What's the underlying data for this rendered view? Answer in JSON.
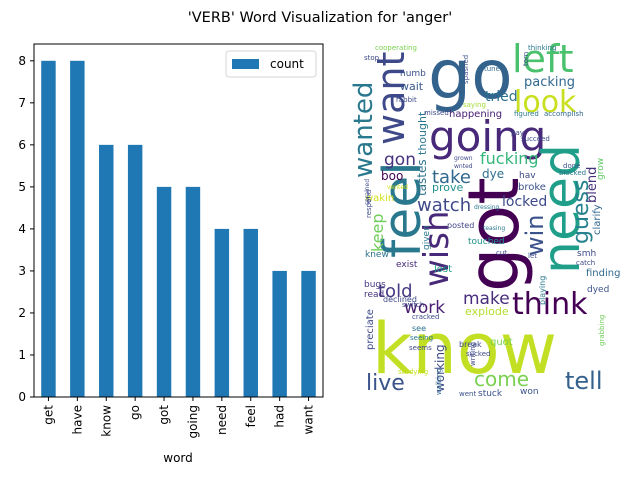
{
  "figure": {
    "title": "'VERB' Word Visualization for 'anger'"
  },
  "chart_data": [
    {
      "type": "bar",
      "categories": [
        "get",
        "have",
        "know",
        "go",
        "got",
        "going",
        "need",
        "feel",
        "had",
        "want"
      ],
      "series": [
        {
          "name": "count",
          "values": [
            8,
            8,
            6,
            6,
            5,
            5,
            4,
            4,
            3,
            3
          ]
        }
      ],
      "xlabel": "word",
      "ylabel": "",
      "ylim": [
        0,
        8.4
      ],
      "yticks": [
        0,
        1,
        2,
        3,
        4,
        5,
        6,
        7,
        8
      ],
      "legend": "top-right",
      "grid": false,
      "colors": {
        "bar": "#1f77b4"
      }
    },
    {
      "type": "wordcloud",
      "words": [
        {
          "text": "know",
          "color": "#c2df23"
        },
        {
          "text": "go",
          "color": "#33638d"
        },
        {
          "text": "got",
          "color": "#440154"
        },
        {
          "text": "going",
          "color": "#482878"
        },
        {
          "text": "feel",
          "color": "#2a788e"
        },
        {
          "text": "need",
          "color": "#1f9e89"
        },
        {
          "text": "left",
          "color": "#4ac16d"
        },
        {
          "text": "look",
          "color": "#c8e020"
        },
        {
          "text": "want",
          "color": "#3e4989"
        },
        {
          "text": "think",
          "color": "#440154"
        },
        {
          "text": "wish",
          "color": "#482878"
        },
        {
          "text": "wanted",
          "color": "#2a788e"
        },
        {
          "text": "fucking",
          "color": "#35b779"
        },
        {
          "text": "take",
          "color": "#31688e"
        },
        {
          "text": "watch",
          "color": "#3e4a89"
        },
        {
          "text": "gon",
          "color": "#46327e"
        },
        {
          "text": "guess",
          "color": "#26828e"
        },
        {
          "text": "win",
          "color": "#3b528b"
        },
        {
          "text": "keep",
          "color": "#6ece58"
        },
        {
          "text": "told",
          "color": "#443983"
        },
        {
          "text": "make",
          "color": "#472d7b"
        },
        {
          "text": "work",
          "color": "#481f70"
        },
        {
          "text": "live",
          "color": "#3b528b"
        },
        {
          "text": "come",
          "color": "#7ad151"
        },
        {
          "text": "tell",
          "color": "#34618d"
        },
        {
          "text": "tried",
          "color": "#2c718e"
        },
        {
          "text": "packing",
          "color": "#31688e"
        },
        {
          "text": "locked",
          "color": "#3e4a89"
        },
        {
          "text": "boo",
          "color": "#440154"
        },
        {
          "text": "dye",
          "color": "#2e6f8e"
        },
        {
          "text": "blend",
          "color": "#46337e"
        },
        {
          "text": "explode",
          "color": "#b5de2b"
        },
        {
          "text": "working",
          "color": "#3e4989"
        },
        {
          "text": "wait",
          "color": "#38598c"
        },
        {
          "text": "happening",
          "color": "#482173"
        },
        {
          "text": "numb",
          "color": "#3b528b"
        },
        {
          "text": "thought",
          "color": "#2a788e"
        },
        {
          "text": "tastes",
          "color": "#2c728e"
        },
        {
          "text": "prove",
          "color": "#21918c"
        },
        {
          "text": "broke",
          "color": "#3b528b"
        },
        {
          "text": "clarify",
          "color": "#31688e"
        },
        {
          "text": "grow",
          "color": "#5ec962"
        },
        {
          "text": "hav",
          "color": "#3e4989"
        },
        {
          "text": "wakin",
          "color": "#d2e21b"
        },
        {
          "text": "knew",
          "color": "#2c728e"
        },
        {
          "text": "exist",
          "color": "#472c7a"
        },
        {
          "text": "lost",
          "color": "#1fa088"
        },
        {
          "text": "given",
          "color": "#2a788e"
        },
        {
          "text": "posted",
          "color": "#414487"
        },
        {
          "text": "touched",
          "color": "#21918c"
        },
        {
          "text": "smh",
          "color": "#3e4989"
        },
        {
          "text": "finding",
          "color": "#31688e"
        },
        {
          "text": "dyed",
          "color": "#3b528b"
        },
        {
          "text": "bugs",
          "color": "#443a83"
        },
        {
          "text": "read",
          "color": "#46327e"
        },
        {
          "text": "preciate",
          "color": "#3e4989"
        },
        {
          "text": "declined",
          "color": "#3e4989"
        },
        {
          "text": "quot",
          "color": "#7ad151"
        },
        {
          "text": "stuck",
          "color": "#3b528b"
        },
        {
          "text": "won",
          "color": "#3b528b"
        },
        {
          "text": "playing",
          "color": "#2a788e"
        },
        {
          "text": "catch",
          "color": "#3e4989"
        },
        {
          "text": "grabbing",
          "color": "#6ece58"
        },
        {
          "text": "writing",
          "color": "#3e4989"
        },
        {
          "text": "studying",
          "color": "#c2df23"
        },
        {
          "text": "went",
          "color": "#3b528b"
        },
        {
          "text": "walking",
          "color": "#31688e"
        },
        {
          "text": "break",
          "color": "#3e4989"
        },
        {
          "text": "sucked",
          "color": "#3e4989"
        },
        {
          "text": "seeing",
          "color": "#2a788e"
        },
        {
          "text": "seems",
          "color": "#3e4989"
        },
        {
          "text": "see",
          "color": "#2c728e"
        },
        {
          "text": "cracked",
          "color": "#3e4989"
        },
        {
          "text": "cooperating",
          "color": "#7ad151"
        },
        {
          "text": "stop",
          "color": "#3e4989"
        },
        {
          "text": "spashed",
          "color": "#3b528b"
        },
        {
          "text": "tune",
          "color": "#31688e"
        },
        {
          "text": "torn",
          "color": "#3e4989"
        },
        {
          "text": "thinking",
          "color": "#2a788e"
        },
        {
          "text": "rabbit",
          "color": "#3e4989"
        },
        {
          "text": "missed",
          "color": "#3e4989"
        },
        {
          "text": "saying",
          "color": "#a5db36"
        },
        {
          "text": "figured",
          "color": "#2a788e"
        },
        {
          "text": "accomplish",
          "color": "#31688e"
        },
        {
          "text": "pay",
          "color": "#3e4989"
        },
        {
          "text": "succeed",
          "color": "#3e4989"
        },
        {
          "text": "done",
          "color": "#3b528b"
        },
        {
          "text": "blocked",
          "color": "#2a788e"
        },
        {
          "text": "dressing",
          "color": "#2a788e"
        },
        {
          "text": "teasing",
          "color": "#2a788e"
        },
        {
          "text": "switch",
          "color": "#3e4989"
        },
        {
          "text": "sprained",
          "color": "#3e4989"
        },
        {
          "text": "respond",
          "color": "#3e4989"
        },
        {
          "text": "vented",
          "color": "#d2e21b"
        },
        {
          "text": "grown",
          "color": "#3e4989"
        },
        {
          "text": "wnted",
          "color": "#3e4989"
        },
        {
          "text": "let",
          "color": "#3e4989"
        },
        {
          "text": "cut",
          "color": "#3e4989"
        }
      ]
    }
  ]
}
